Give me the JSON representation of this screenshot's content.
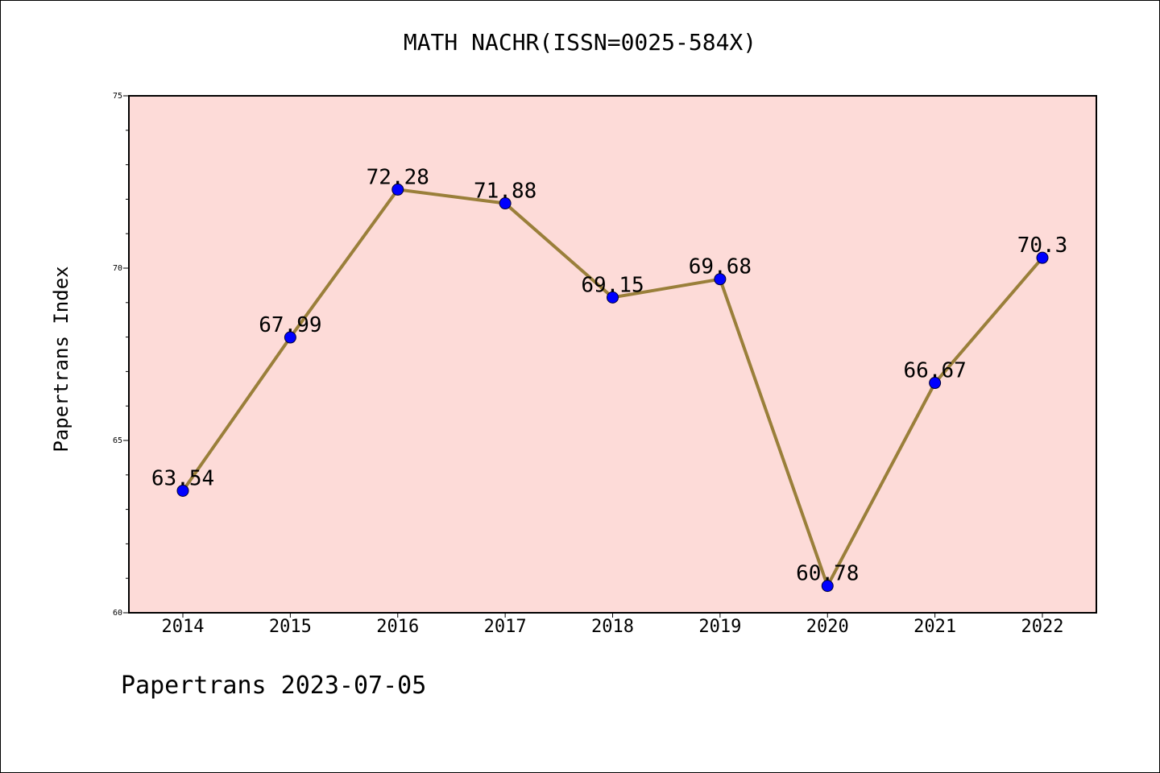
{
  "header": {
    "title": "MATH NACHR(ISSN=0025-584X)"
  },
  "footer": {
    "note": "Papertrans 2023-07-05"
  },
  "colors": {
    "plot_background": "#fddbd8",
    "line": "#9a7f3a",
    "marker": "#0000ff",
    "axis": "#000000"
  },
  "chart_data": {
    "type": "line",
    "title": "MATH NACHR(ISSN=0025-584X)",
    "xlabel": "",
    "ylabel": "Papertrans Index",
    "categories": [
      "2014",
      "2015",
      "2016",
      "2017",
      "2018",
      "2019",
      "2020",
      "2021",
      "2022"
    ],
    "series": [
      {
        "values": [
          63.54,
          67.99,
          72.28,
          71.88,
          69.15,
          69.68,
          60.78,
          66.67,
          70.3
        ]
      }
    ],
    "data_labels": [
      "63.54",
      "67.99",
      "72.28",
      "71.88",
      "69.15",
      "69.68",
      "60.78",
      "66.67",
      "70.3"
    ],
    "ylim": [
      60,
      75
    ],
    "y_ticks": [
      "60",
      "65",
      "70",
      "75"
    ],
    "y_minor_step": 1,
    "grid": false,
    "legend": "none"
  }
}
